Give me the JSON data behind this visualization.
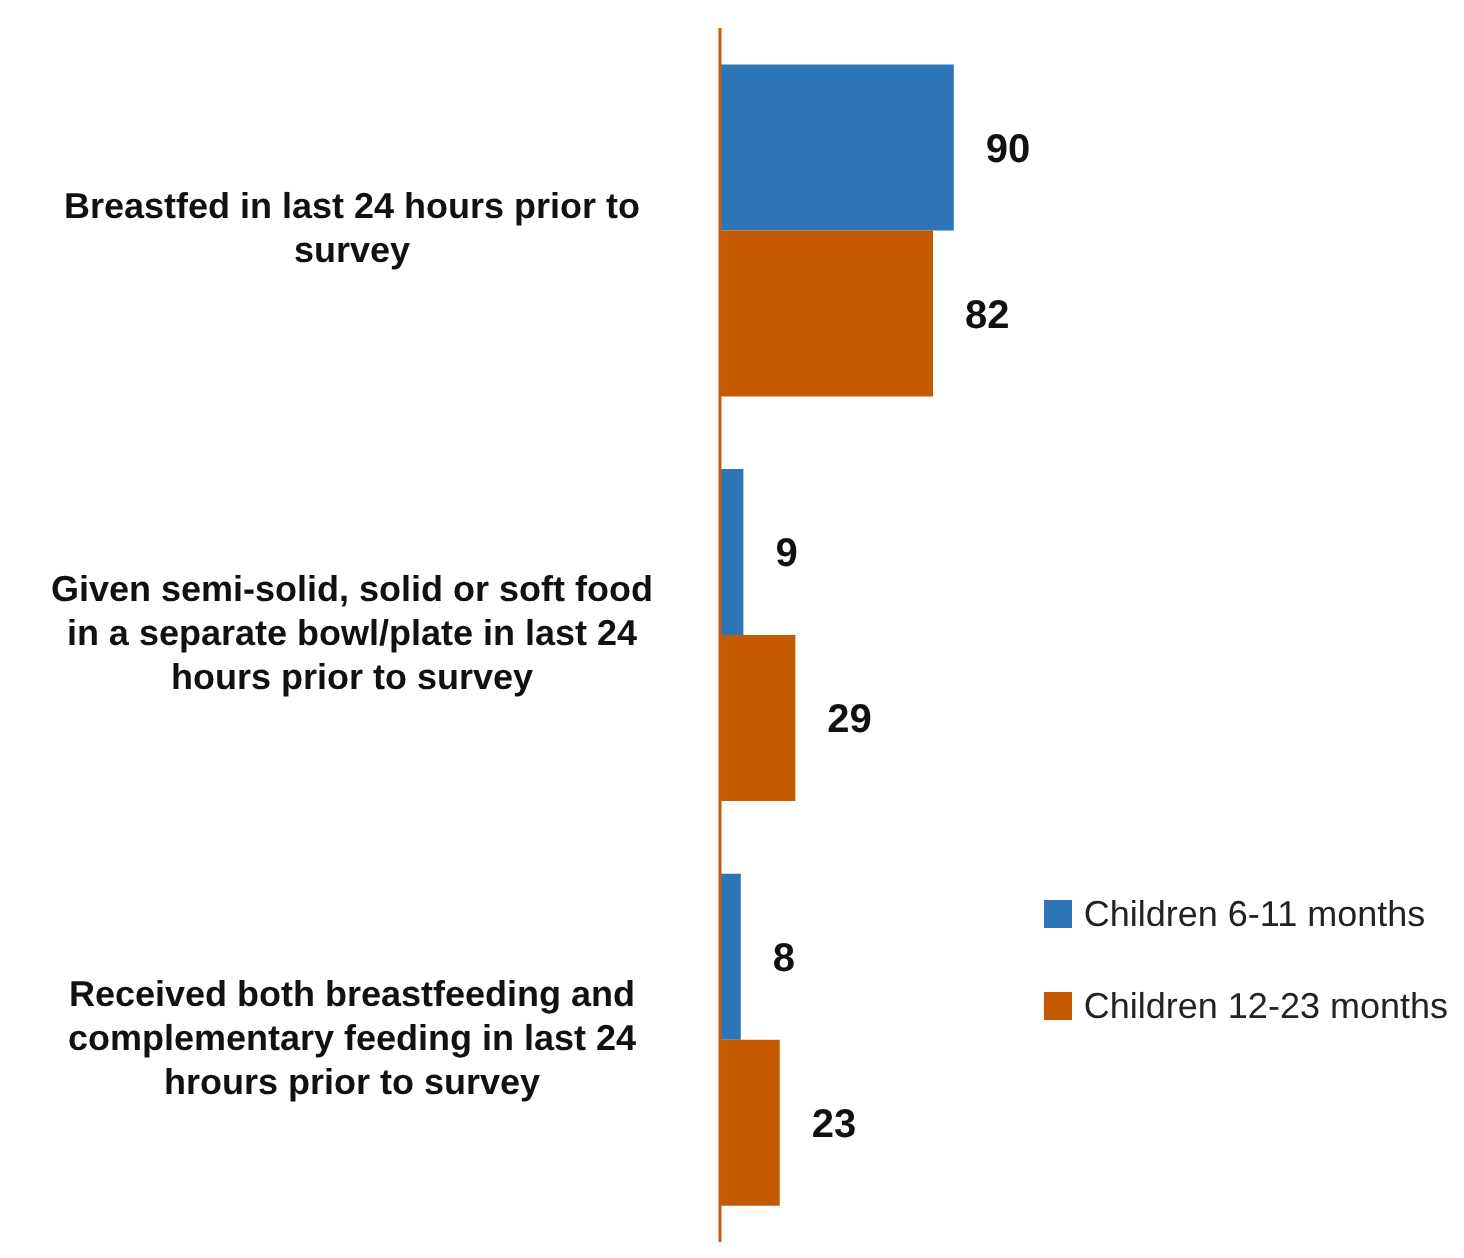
{
  "chart_data": {
    "type": "bar",
    "orientation": "horizontal",
    "categories": [
      "Breastfed in last 24 hours prior to survey",
      "Given semi-solid, solid or soft food in a separate bowl/plate in last 24 hours prior to survey",
      "Received both breastfeeding and complementary feeding in last 24 hrours prior to survey"
    ],
    "series": [
      {
        "name": "Children 6-11 months",
        "color": "#2e75b6",
        "values": [
          90,
          9,
          8
        ]
      },
      {
        "name": "Children 12-23 months",
        "color": "#c55a00",
        "values": [
          82,
          29,
          23
        ]
      }
    ],
    "data_labels": true,
    "legend": "bottom right"
  }
}
